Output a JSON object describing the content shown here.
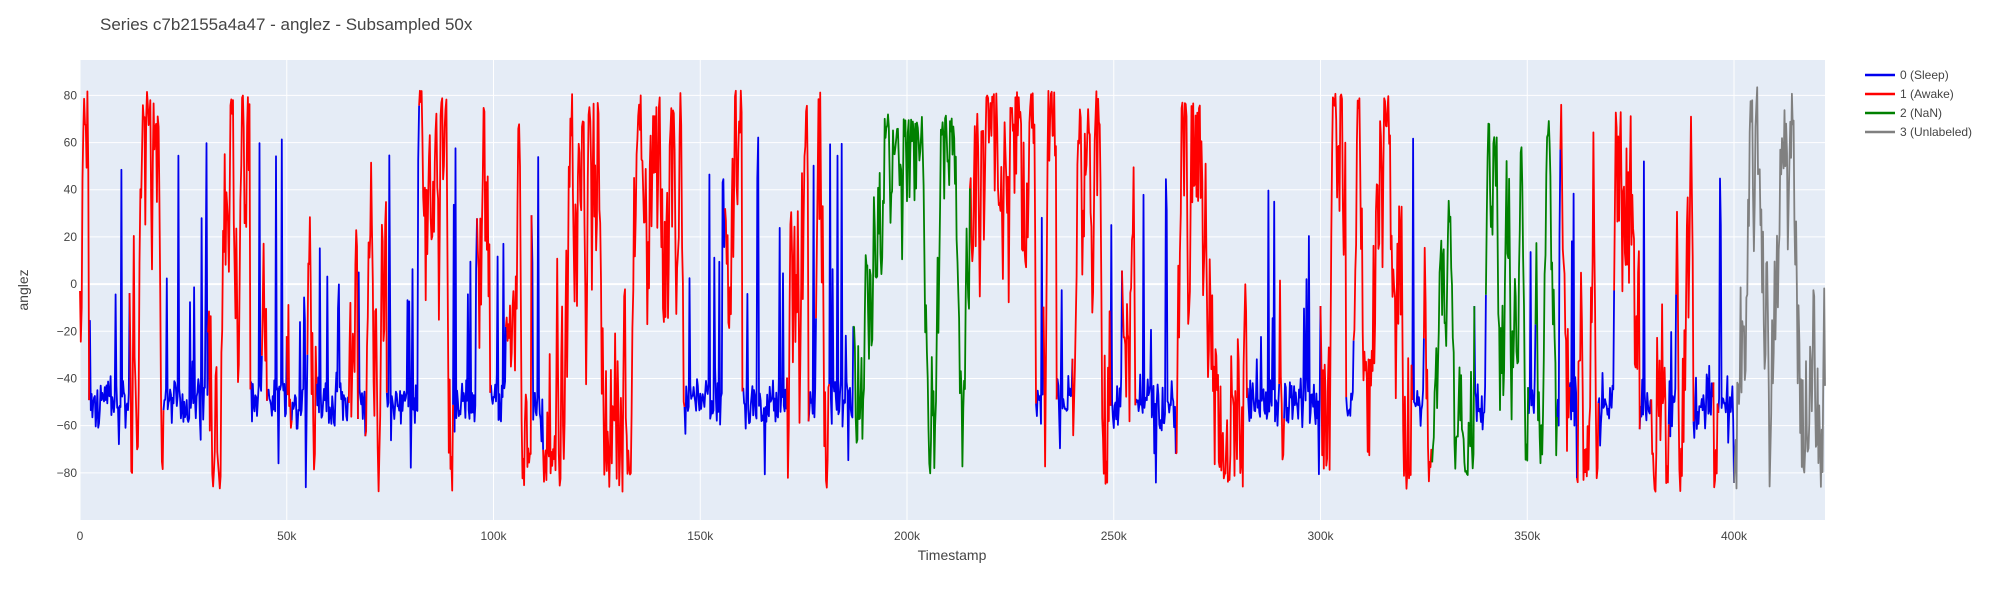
{
  "chart_data": {
    "type": "line",
    "title": "Series c7b2155a4a47 - anglez - Subsampled 50x",
    "xlabel": "Timestamp",
    "ylabel": "anglez",
    "xlim": [
      0,
      422000
    ],
    "ylim": [
      -100,
      95
    ],
    "x_ticks": [
      0,
      50000,
      100000,
      150000,
      200000,
      250000,
      300000,
      350000,
      400000
    ],
    "x_tick_labels": [
      "0",
      "50k",
      "100k",
      "150k",
      "200k",
      "250k",
      "300k",
      "350k",
      "400k"
    ],
    "y_ticks": [
      -80,
      -60,
      -40,
      -20,
      0,
      20,
      40,
      60,
      80
    ],
    "y_tick_labels": [
      "−80",
      "−60",
      "−40",
      "−20",
      "0",
      "20",
      "40",
      "60",
      "80"
    ],
    "grid": true,
    "legend_position": "top-right",
    "colors": {
      "plot_background": "#e5ecf6",
      "grid": "#ffffff",
      "title": "#444444",
      "axis_text": "#444444"
    },
    "series": [
      {
        "name": "0 (Sleep)",
        "color": "#0000ee",
        "segments": [
          [
            2000,
            12000
          ],
          [
            20000,
            31000
          ],
          [
            41000,
            44000
          ],
          [
            45000,
            50000
          ],
          [
            51000,
            55000
          ],
          [
            57000,
            65000
          ],
          [
            67000,
            69000
          ],
          [
            74000,
            82000
          ],
          [
            90000,
            96000
          ],
          [
            99000,
            103000
          ],
          [
            109000,
            112000
          ],
          [
            146000,
            156000
          ],
          [
            160000,
            171000
          ],
          [
            176000,
            178000
          ],
          [
            181000,
            187000
          ],
          [
            231000,
            233000
          ],
          [
            236000,
            240000
          ],
          [
            249000,
            252000
          ],
          [
            255000,
            265000
          ],
          [
            282000,
            290000
          ],
          [
            291000,
            300000
          ],
          [
            306000,
            308000
          ],
          [
            322000,
            325000
          ],
          [
            337000,
            340000
          ],
          [
            350000,
            352000
          ],
          [
            357000,
            358000
          ],
          [
            360000,
            362000
          ],
          [
            367000,
            371000
          ],
          [
            377000,
            380000
          ],
          [
            384000,
            386000
          ],
          [
            390000,
            395000
          ],
          [
            396000,
            400000
          ]
        ]
      },
      {
        "name": "1 (Awake)",
        "color": "#ff0000",
        "segments": [
          [
            0,
            2000
          ],
          [
            12000,
            20000
          ],
          [
            31000,
            41000
          ],
          [
            44000,
            45000
          ],
          [
            50000,
            51000
          ],
          [
            55000,
            57000
          ],
          [
            65000,
            67000
          ],
          [
            69000,
            74000
          ],
          [
            82000,
            90000
          ],
          [
            96000,
            99000
          ],
          [
            103000,
            109000
          ],
          [
            112000,
            146000
          ],
          [
            156000,
            160000
          ],
          [
            171000,
            176000
          ],
          [
            178000,
            181000
          ],
          [
            215000,
            231000
          ],
          [
            233000,
            236000
          ],
          [
            240000,
            249000
          ],
          [
            252000,
            255000
          ],
          [
            265000,
            282000
          ],
          [
            290000,
            291000
          ],
          [
            300000,
            306000
          ],
          [
            308000,
            322000
          ],
          [
            325000,
            327000
          ],
          [
            358000,
            360000
          ],
          [
            362000,
            367000
          ],
          [
            371000,
            377000
          ],
          [
            380000,
            384000
          ],
          [
            386000,
            390000
          ],
          [
            395000,
            396000
          ]
        ]
      },
      {
        "name": "2 (NaN)",
        "color": "#008000",
        "segments": [
          [
            187000,
            215000
          ],
          [
            327000,
            337000
          ],
          [
            340000,
            350000
          ],
          [
            352000,
            357000
          ]
        ]
      },
      {
        "name": "3 (Unlabeled)",
        "color": "#808080",
        "segments": [
          [
            400000,
            422000
          ]
        ]
      }
    ]
  }
}
